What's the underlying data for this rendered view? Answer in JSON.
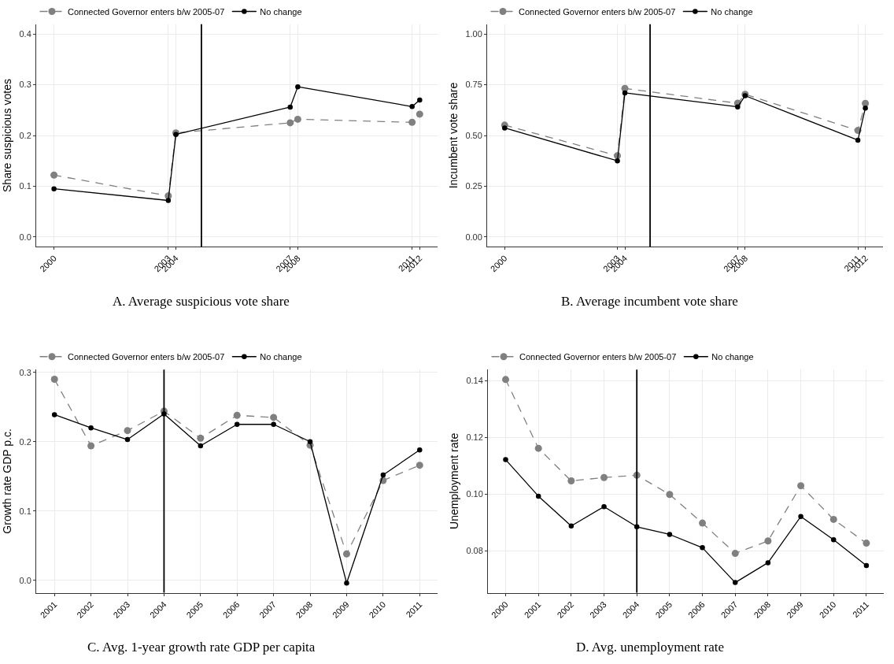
{
  "chart_data": [
    {
      "type": "line",
      "title": "A. Average suspicious vote share",
      "ylabel": "Share suspicious votes",
      "x": [
        "2000-03",
        "2003-12",
        "2004-03",
        "2007-12",
        "2008-03",
        "2011-12",
        "2012-03"
      ],
      "series": [
        {
          "name": "Connected Governor enters b/w 2005-07",
          "color": "#808080",
          "line_style": "dashed",
          "values": [
            0.122,
            0.081,
            0.205,
            0.225,
            0.232,
            0.226,
            0.242
          ]
        },
        {
          "name": "No change",
          "color": "#000000",
          "line_style": "solid",
          "values": [
            0.095,
            0.072,
            0.202,
            0.256,
            0.296,
            0.257,
            0.27
          ]
        }
      ],
      "xlim": [
        "1999-08",
        "2012-10"
      ],
      "xticks": [
        {
          "value": "2000-03",
          "label": "2000"
        },
        {
          "value": "2003-12",
          "label": "2003"
        },
        {
          "value": "2004-03",
          "label": "2004"
        },
        {
          "value": "2007-12",
          "label": "2007"
        },
        {
          "value": "2008-03",
          "label": "2008"
        },
        {
          "value": "2011-12",
          "label": "2011"
        },
        {
          "value": "2012-03",
          "label": "2012"
        }
      ],
      "ylim": [
        -0.019,
        0.419
      ],
      "yticks": [
        {
          "value": 0,
          "label": "0.0"
        },
        0.1,
        0.2,
        0.3,
        0.4
      ],
      "ref_lines": [
        {
          "axis": "x",
          "value": "2005-01",
          "color": "#000000"
        }
      ],
      "grid": true,
      "legend": "top left",
      "marker": "circle"
    },
    {
      "type": "line",
      "title": "B. Average incumbent vote share",
      "ylabel": "Incumbent vote share",
      "x": [
        "2000-03",
        "2003-12",
        "2004-03",
        "2007-12",
        "2008-03",
        "2011-12",
        "2012-03"
      ],
      "series": [
        {
          "name": "Connected Governor enters b/w 2005-07",
          "color": "#808080",
          "line_style": "dashed",
          "values": [
            0.551,
            0.4,
            0.732,
            0.659,
            0.703,
            0.525,
            0.658
          ]
        },
        {
          "name": "No change",
          "color": "#000000",
          "line_style": "solid",
          "values": [
            0.537,
            0.375,
            0.71,
            0.641,
            0.696,
            0.477,
            0.635
          ]
        }
      ],
      "xlim": [
        "1999-08",
        "2012-10"
      ],
      "xticks": [
        {
          "value": "2000-03",
          "label": "2000"
        },
        {
          "value": "2003-12",
          "label": "2003"
        },
        {
          "value": "2004-03",
          "label": "2004"
        },
        {
          "value": "2007-12",
          "label": "2007"
        },
        {
          "value": "2008-03",
          "label": "2008"
        },
        {
          "value": "2011-12",
          "label": "2011"
        },
        {
          "value": "2012-03",
          "label": "2012"
        }
      ],
      "ylim": [
        -0.048,
        1.048
      ],
      "yticks": [
        {
          "value": 0,
          "label": "0.00"
        },
        0.25,
        {
          "value": 0.5,
          "label": "0.50"
        },
        0.75,
        {
          "value": 1,
          "label": "1.00"
        }
      ],
      "ref_lines": [
        {
          "axis": "x",
          "value": "2005-01",
          "color": "#000000"
        }
      ],
      "grid": true,
      "legend": "top left",
      "marker": "circle"
    },
    {
      "type": "line",
      "title": "C. Avg. 1-year growth rate GDP per capita",
      "ylabel": "Growth rate GDP p.c.",
      "x": [
        2001,
        2002,
        2003,
        2004,
        2005,
        2006,
        2007,
        2008,
        2009,
        2010,
        2011
      ],
      "series": [
        {
          "name": "Connected Governor enters b/w 2005-07",
          "color": "#808080",
          "line_style": "dashed",
          "values": [
            0.29,
            0.194,
            0.216,
            0.244,
            0.205,
            0.238,
            0.235,
            0.195,
            0.038,
            0.144,
            0.166
          ]
        },
        {
          "name": "No change",
          "color": "#000000",
          "line_style": "solid",
          "values": [
            0.239,
            0.22,
            0.203,
            0.24,
            0.194,
            0.225,
            0.225,
            0.2,
            -0.004,
            0.152,
            0.188
          ]
        }
      ],
      "xlim": [
        2000.5,
        2011.49
      ],
      "xticks": [
        2001,
        2002,
        2003,
        2004,
        2005,
        2006,
        2007,
        2008,
        2009,
        2010,
        2011
      ],
      "ylim": [
        -0.018,
        0.304
      ],
      "yticks": [
        {
          "value": 0,
          "label": "0.0"
        },
        0.1,
        0.2,
        0.3
      ],
      "ref_lines": [
        {
          "axis": "x",
          "value": 2004,
          "color": "#000000"
        }
      ],
      "grid": true,
      "legend": "top left",
      "marker": "circle"
    },
    {
      "type": "line",
      "title": "D. Avg. unemployment rate",
      "ylabel": "Unemployment rate",
      "x": [
        2000,
        2001,
        2002,
        2003,
        2004,
        2005,
        2006,
        2007,
        2008,
        2009,
        2010,
        2011
      ],
      "series": [
        {
          "name": "Connected Governor enters b/w 2005-07",
          "color": "#808080",
          "line_style": "dashed",
          "values": [
            0.1405,
            0.1162,
            0.1047,
            0.1059,
            0.1067,
            0.0999,
            0.0898,
            0.0791,
            0.0835,
            0.103,
            0.0911,
            0.0827
          ]
        },
        {
          "name": "No change",
          "color": "#000000",
          "line_style": "solid",
          "values": [
            0.1122,
            0.0993,
            0.0888,
            0.0956,
            0.0885,
            0.0858,
            0.0811,
            0.0688,
            0.0758,
            0.0921,
            0.0839,
            0.0748
          ]
        }
      ],
      "xlim": [
        1999.46,
        2011.53
      ],
      "xticks": [
        2000,
        2001,
        2002,
        2003,
        2004,
        2005,
        2006,
        2007,
        2008,
        2009,
        2010,
        2011
      ],
      "ylim": [
        0.0652,
        0.144
      ],
      "yticks": [
        {
          "value": 0.08,
          "label": "0.08"
        },
        {
          "value": 0.1,
          "label": "0.10"
        },
        0.12,
        0.14
      ],
      "ref_lines": [
        {
          "axis": "x",
          "value": 2004,
          "color": "#000000"
        }
      ],
      "grid": true,
      "legend": "top left",
      "marker": "circle"
    }
  ]
}
